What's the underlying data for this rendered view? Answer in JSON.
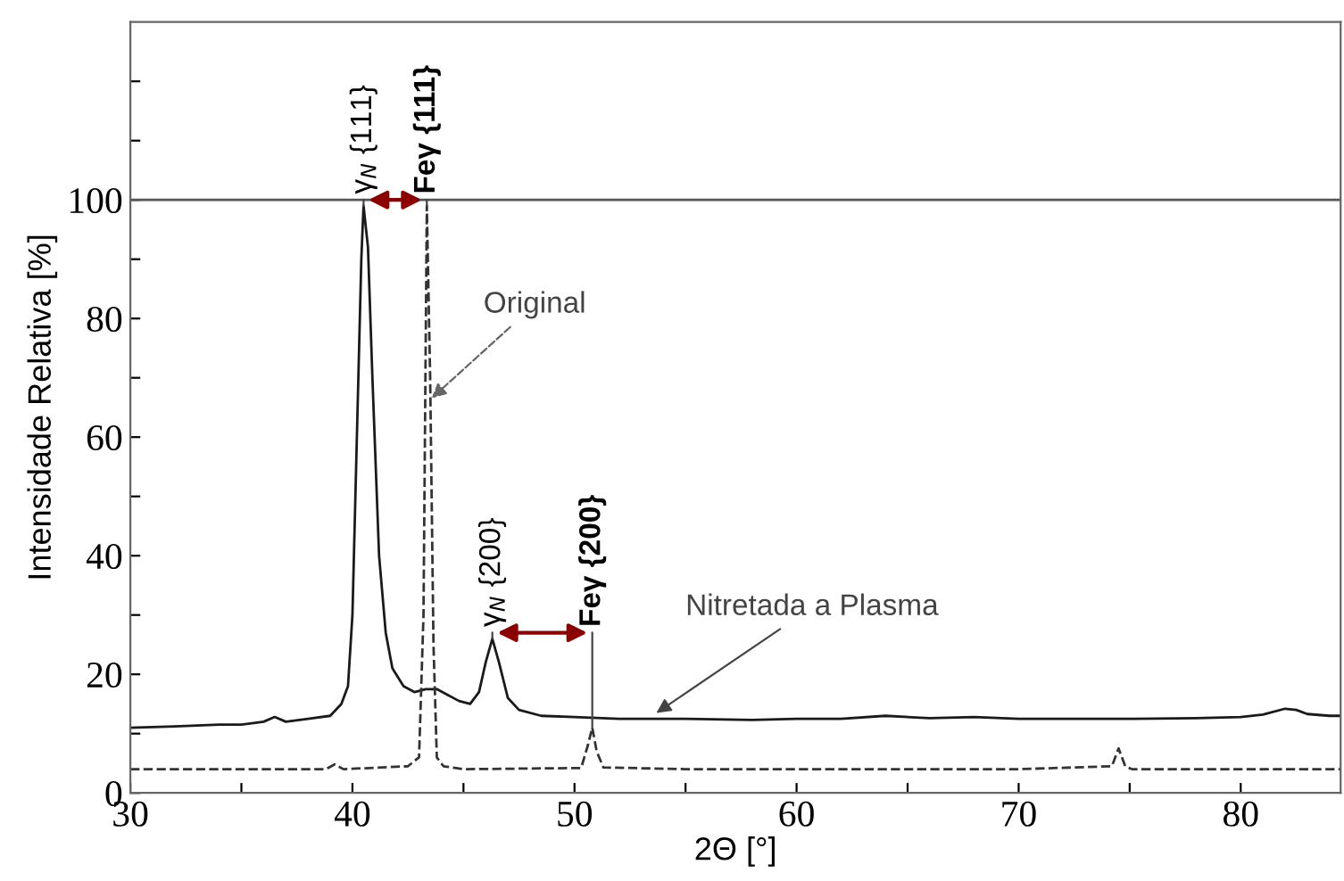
{
  "chart_data": {
    "type": "line",
    "xlabel": "2Θ [°]",
    "ylabel": "Intensidade Relativa [%]",
    "xlim": [
      30,
      84.5
    ],
    "ylim": [
      0,
      130
    ],
    "xticks": [
      30,
      {
        "value": 35,
        "label": null
      },
      40,
      {
        "value": 45,
        "label": null
      },
      50,
      {
        "value": 55,
        "label": null
      },
      60,
      {
        "value": 65,
        "label": null
      },
      70,
      {
        "value": 75,
        "label": null
      },
      80
    ],
    "yticks": [
      0,
      {
        "value": 10,
        "label": null
      },
      20,
      {
        "value": 30,
        "label": null
      },
      40,
      {
        "value": 50,
        "label": null
      },
      60,
      {
        "value": 70,
        "label": null
      },
      80,
      {
        "value": 90,
        "label": null
      },
      100,
      {
        "value": 110,
        "label": null
      },
      {
        "value": 120,
        "label": null
      }
    ],
    "grid": false,
    "legend": false,
    "series": [
      {
        "color": "#1a1a1a",
        "line_style": "solid",
        "x": [
          30,
          32,
          34,
          35,
          36,
          36.5,
          37,
          38,
          39,
          39.5,
          39.8,
          40,
          40.2,
          40.4,
          40.5,
          40.7,
          40.9,
          41.2,
          41.5,
          41.8,
          42.3,
          42.8,
          43.3,
          43.8,
          44.3,
          44.8,
          45.3,
          45.7,
          46,
          46.3,
          46.6,
          47,
          47.5,
          48.5,
          50,
          52,
          55,
          58,
          60,
          62,
          64,
          66,
          68,
          70,
          72,
          75,
          78,
          80,
          81,
          82,
          82.5,
          83,
          84,
          84.5
        ],
        "values": [
          11,
          11.2,
          11.5,
          11.5,
          12,
          12.8,
          12,
          12.5,
          13,
          15,
          18,
          30,
          60,
          90,
          99,
          92,
          70,
          40,
          27,
          21,
          18,
          17,
          17.5,
          17.5,
          16.5,
          15.5,
          15,
          17,
          22,
          26,
          22,
          16,
          14,
          13,
          12.8,
          12.5,
          12.5,
          12.3,
          12.5,
          12.5,
          13,
          12.6,
          12.8,
          12.5,
          12.5,
          12.5,
          12.6,
          12.8,
          13.2,
          14.2,
          14,
          13.3,
          13,
          13
        ]
      },
      {
        "color": "#333333",
        "line_style": "dashed",
        "x": [
          30,
          35,
          38.8,
          39.2,
          39.6,
          42.5,
          43,
          43.2,
          43.35,
          43.5,
          43.65,
          43.8,
          44.1,
          45,
          50.3,
          50.6,
          50.8,
          51,
          51.3,
          55,
          70,
          74.2,
          74.5,
          74.8,
          75.1,
          80,
          84.5
        ],
        "values": [
          4,
          4,
          4,
          4.8,
          4,
          4.5,
          6,
          30,
          99,
          70,
          25,
          6,
          4.5,
          4,
          4.2,
          8,
          11,
          7,
          4.3,
          4,
          4,
          4.5,
          7.5,
          4.5,
          4,
          4,
          4
        ]
      }
    ],
    "ref_lines": [
      {
        "axis": "y",
        "value": 100,
        "color": "#555555",
        "line_style": "solid"
      }
    ],
    "annotations": [
      {
        "text": "γ$_{N}$ {111}",
        "x": 40.5,
        "y": 99
      },
      {
        "text": "Feγ {111}",
        "x": 43.35,
        "y": 99
      },
      {
        "text": "γ$_{N}$ {200}",
        "x": 46.3,
        "y": 26
      },
      {
        "text": "Feγ {200}",
        "x": 50.8,
        "y": 11
      },
      {
        "text": "Original",
        "x": 43.4,
        "y": 66
      },
      {
        "text": "Nitretada a Plasma",
        "x": 53.5,
        "y": 13
      }
    ]
  }
}
